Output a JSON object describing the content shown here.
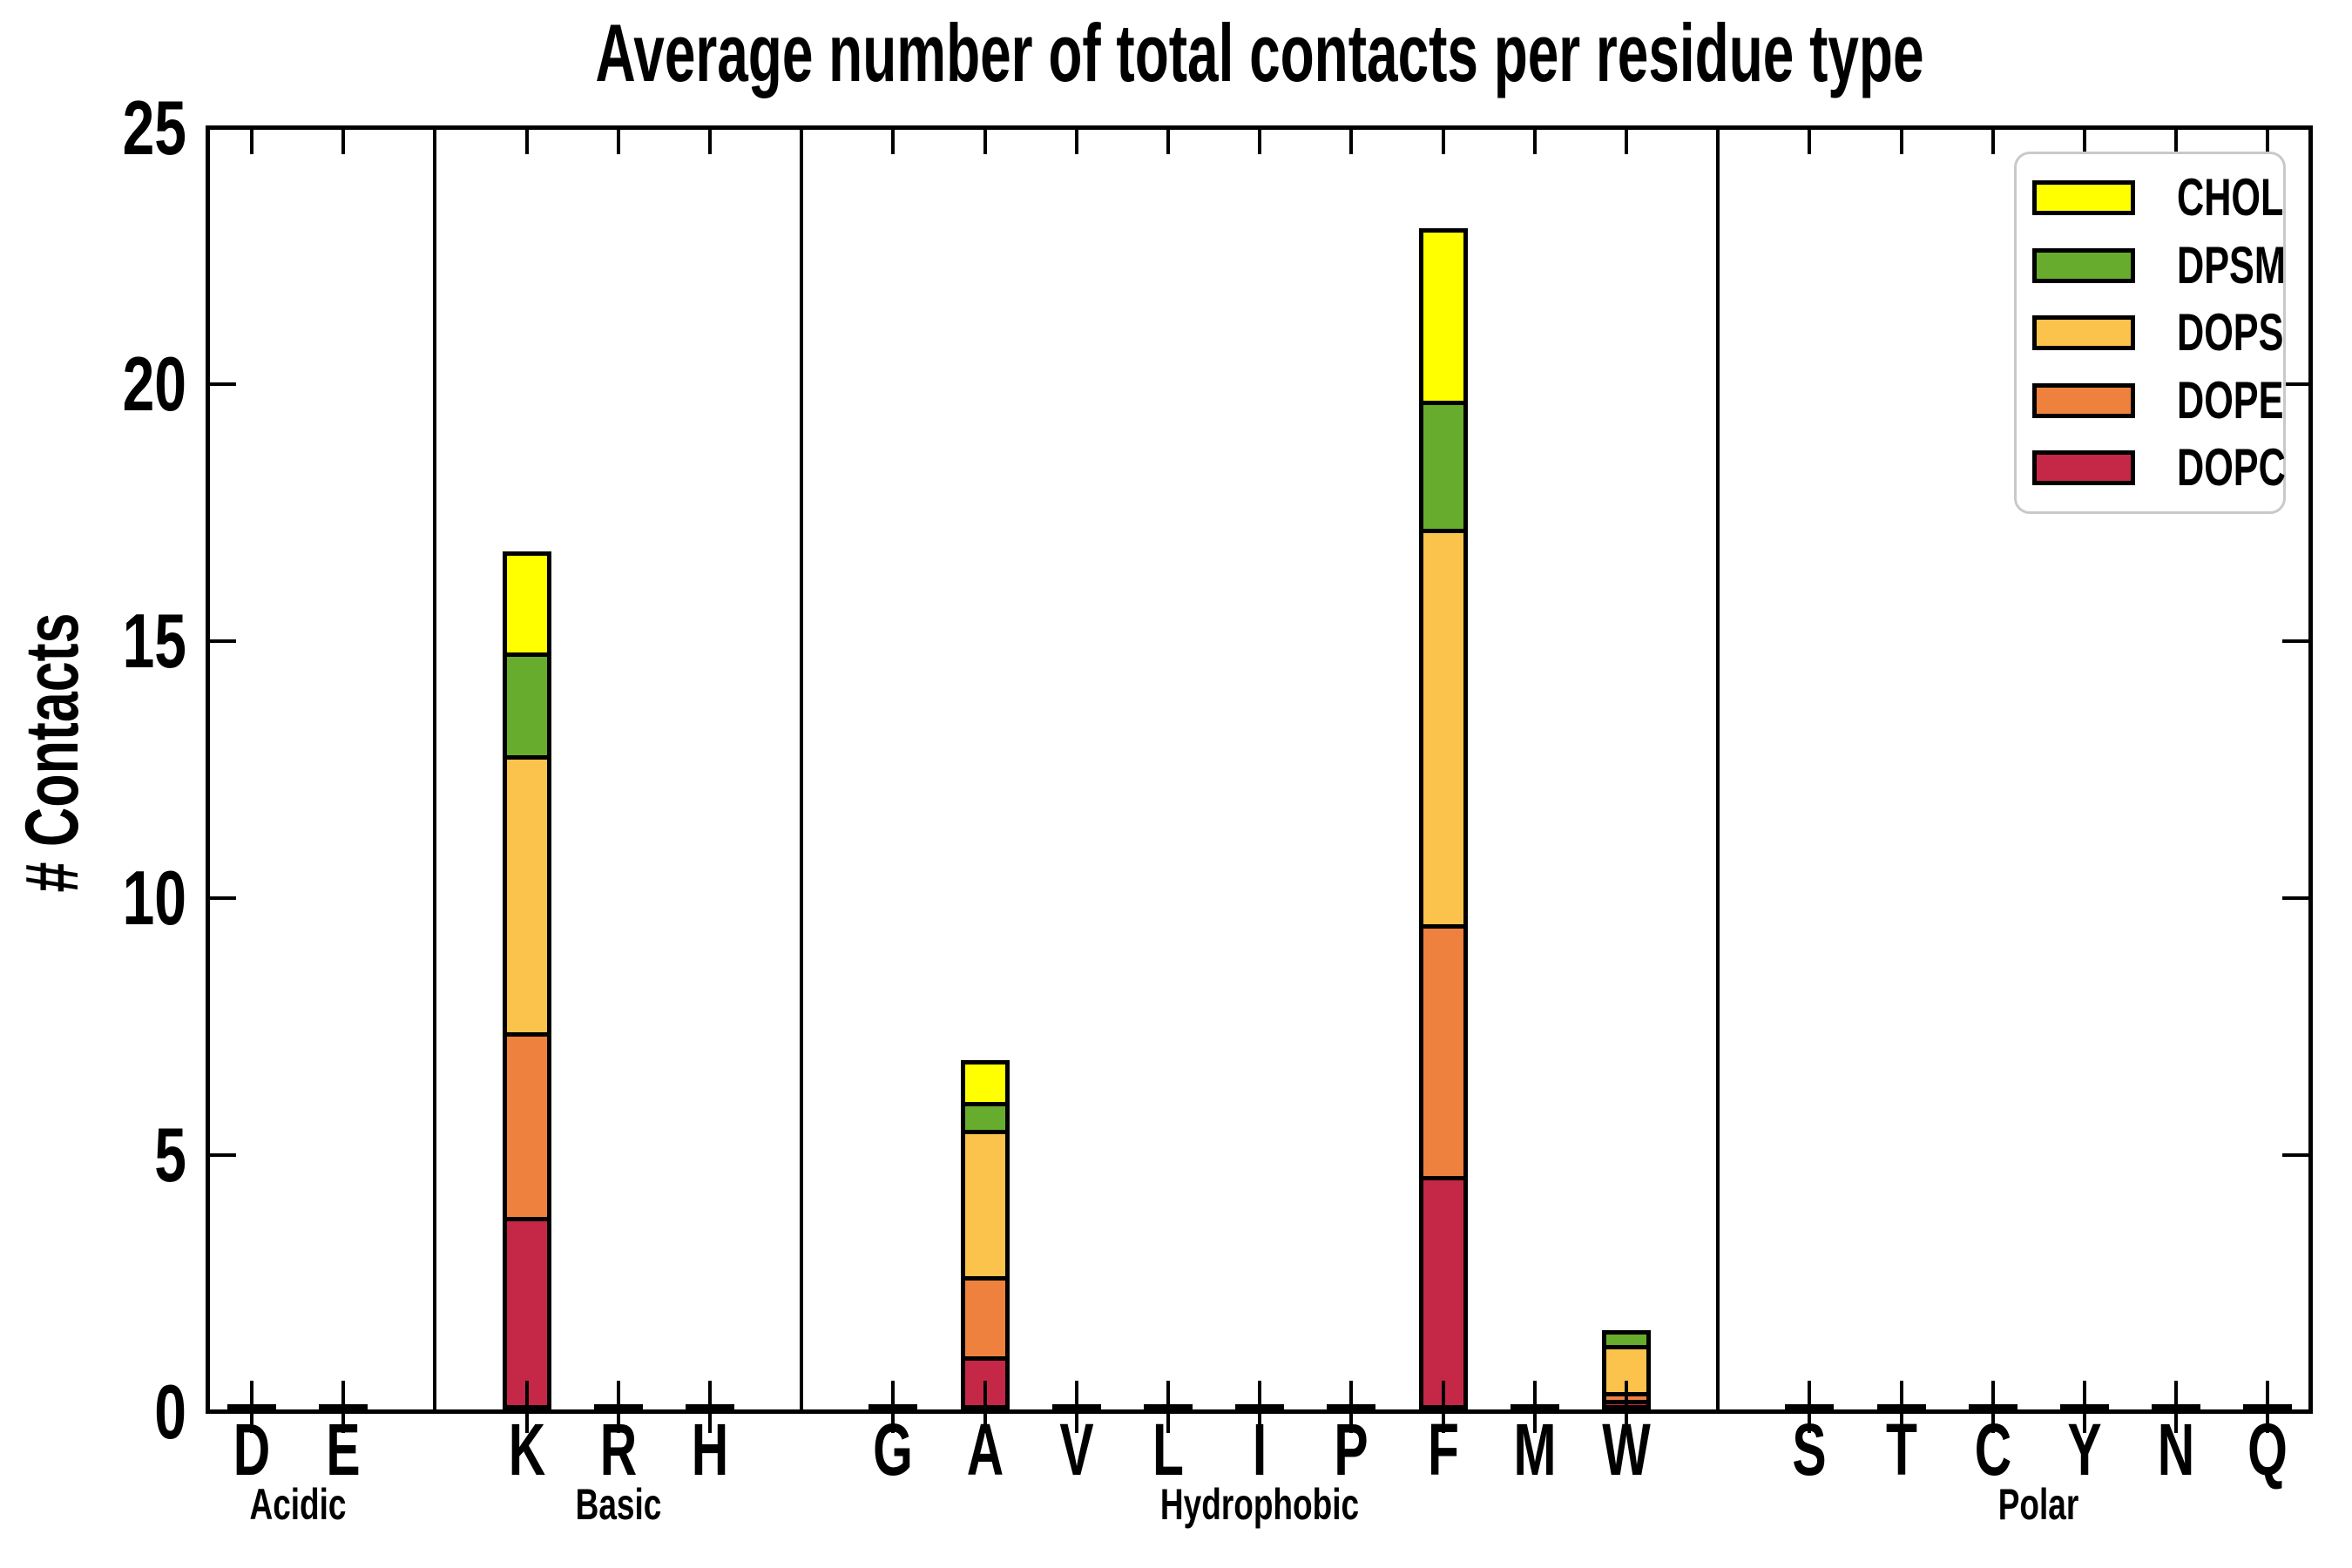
{
  "chart_data": {
    "type": "bar",
    "stacked": true,
    "title": "Average number of total contacts per residue type",
    "ylabel": "# Contacts",
    "ylim": [
      0,
      25
    ],
    "yticks": [
      0,
      5,
      10,
      15,
      20,
      25
    ],
    "grid": false,
    "categories": [
      "D",
      "E",
      "K",
      "R",
      "H",
      "G",
      "A",
      "V",
      "L",
      "I",
      "P",
      "F",
      "M",
      "W",
      "S",
      "T",
      "C",
      "Y",
      "N",
      "Q"
    ],
    "groups": [
      {
        "label": "Acidic",
        "residues": [
          "D",
          "E"
        ]
      },
      {
        "label": "Basic",
        "residues": [
          "K",
          "R",
          "H"
        ]
      },
      {
        "label": "Hydrophobic",
        "residues": [
          "G",
          "A",
          "V",
          "L",
          "I",
          "P",
          "F",
          "M",
          "W"
        ]
      },
      {
        "label": "Polar",
        "residues": [
          "S",
          "T",
          "C",
          "Y",
          "N",
          "Q"
        ]
      }
    ],
    "series": [
      {
        "name": "DOPC",
        "color": "#c52747",
        "values": [
          0,
          0,
          3.7,
          0,
          0,
          0,
          1.0,
          0,
          0,
          0,
          0,
          4.5,
          0,
          0.15,
          0,
          0,
          0,
          0,
          0,
          0
        ]
      },
      {
        "name": "DOPE",
        "color": "#ee813e",
        "values": [
          0,
          0,
          3.6,
          0,
          0,
          0,
          1.55,
          0,
          0,
          0,
          0,
          4.9,
          0,
          0.15,
          0,
          0,
          0,
          0,
          0,
          0
        ]
      },
      {
        "name": "DOPS",
        "color": "#fbc34c",
        "values": [
          0,
          0,
          5.4,
          0,
          0,
          0,
          2.85,
          0,
          0,
          0,
          0,
          7.7,
          0,
          0.92,
          0,
          0,
          0,
          0,
          0,
          0
        ]
      },
      {
        "name": "DPSM",
        "color": "#68ac2d",
        "values": [
          0,
          0,
          2.0,
          0,
          0,
          0,
          0.55,
          0,
          0,
          0,
          0,
          2.5,
          0,
          0.32,
          0,
          0,
          0,
          0,
          0,
          0
        ]
      },
      {
        "name": "CHOL",
        "color": "#ffff00",
        "values": [
          0,
          0,
          2.0,
          0,
          0,
          0,
          0.85,
          0,
          0,
          0,
          0,
          3.4,
          0,
          0,
          0,
          0,
          0,
          0,
          0,
          0
        ]
      }
    ],
    "totals": {
      "K": 16.7,
      "A": 6.8,
      "F": 23.0,
      "W": 1.54
    },
    "legend": {
      "position": "upper right",
      "order": [
        "CHOL",
        "DPSM",
        "DOPS",
        "DOPE",
        "DOPC"
      ]
    }
  }
}
